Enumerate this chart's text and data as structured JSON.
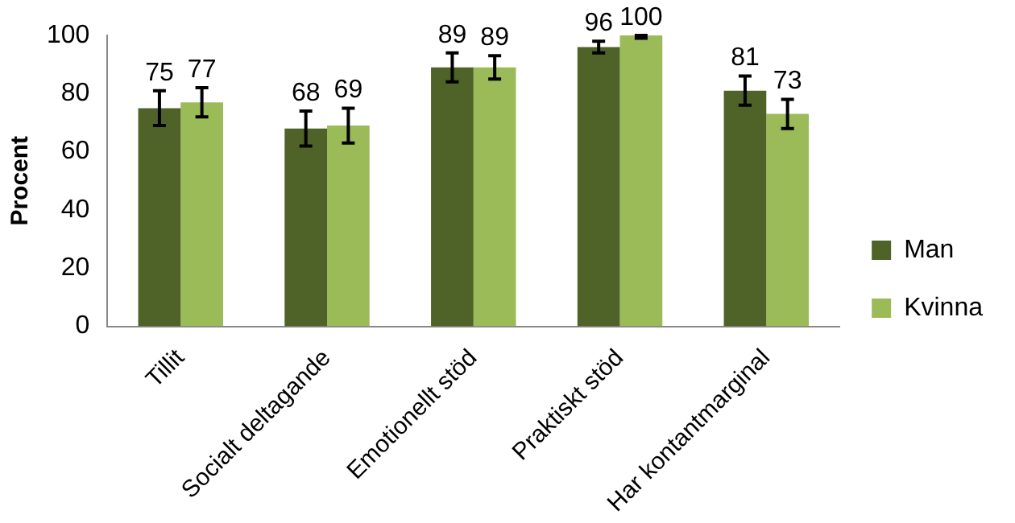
{
  "chart_data": {
    "type": "bar",
    "ylabel": "Procent",
    "categories": [
      "Tillit",
      "Socialt deltagande",
      "Emotionellt stöd",
      "Praktiskt stöd",
      "Har kontantmarginal"
    ],
    "series": [
      {
        "name": "Man",
        "color": "#4f6228",
        "values": [
          75,
          68,
          89,
          96,
          81
        ],
        "errors": [
          6,
          6,
          5,
          2,
          5
        ]
      },
      {
        "name": "Kvinna",
        "color": "#9bbb59",
        "values": [
          77,
          69,
          89,
          100,
          73
        ],
        "errors": [
          5,
          6,
          4,
          [
            99,
            100
          ],
          5
        ]
      }
    ],
    "ylim": [
      0,
      100
    ],
    "yticks": [
      0,
      20,
      40,
      60,
      80,
      100
    ],
    "grid": false,
    "legend": "right",
    "data_labels": true
  }
}
